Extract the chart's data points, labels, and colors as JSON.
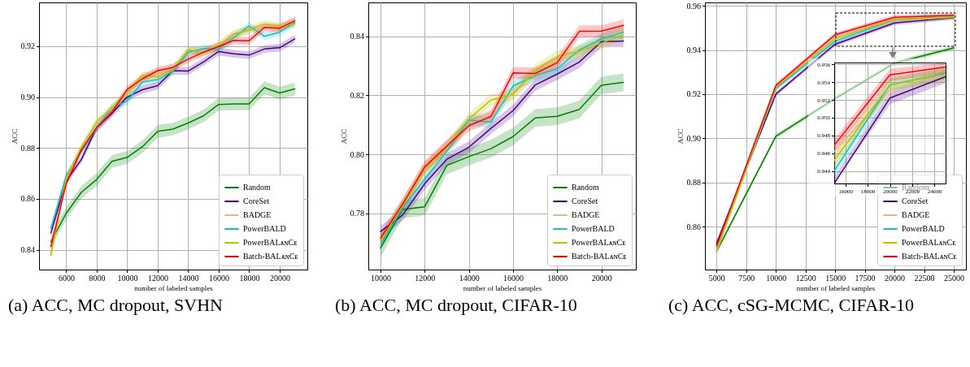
{
  "chart_data": [
    {
      "type": "line",
      "title": "(a) ACC, MC dropout, SVHN",
      "xlabel": "number of labeled samples",
      "ylabel": "ACC",
      "grid": true,
      "legend": "bottom right",
      "x": [
        5000,
        6000,
        7000,
        8000,
        9000,
        10000,
        11000,
        12000,
        13000,
        14000,
        15000,
        16000,
        17000,
        18000,
        19000,
        20000,
        21000
      ],
      "xlim": [
        4220,
        21820
      ],
      "xticks": [
        6000,
        8000,
        10000,
        12000,
        14000,
        16000,
        18000,
        20000
      ],
      "ylim": [
        0.8322,
        0.9372
      ],
      "yticks": [
        0.84,
        0.86,
        0.88,
        {
          "value": 0.9,
          "label": "0.90"
        },
        0.92
      ],
      "series": [
        {
          "name": "Random",
          "color": "#008000",
          "values": [
            0.8432,
            0.8543,
            0.8626,
            0.8676,
            0.8747,
            0.8763,
            0.8805,
            0.8865,
            0.8874,
            0.8898,
            0.8926,
            0.8971,
            0.8973,
            0.8973,
            0.9037,
            0.9016,
            0.9032
          ],
          "lower": [
            0.8407,
            0.8518,
            0.8601,
            0.8651,
            0.8722,
            0.8738,
            0.878,
            0.884,
            0.8849,
            0.8873,
            0.8901,
            0.8946,
            0.8948,
            0.8948,
            0.9012,
            0.8991,
            0.9007
          ],
          "upper": [
            0.8457,
            0.8568,
            0.8651,
            0.8701,
            0.8772,
            0.8788,
            0.883,
            0.889,
            0.8899,
            0.8923,
            0.8951,
            0.8996,
            0.8998,
            0.8998,
            0.9062,
            0.9041,
            0.9057
          ]
        },
        {
          "name": "CoreSet",
          "color": "#4b0082",
          "values": [
            0.8466,
            0.867,
            0.8755,
            0.888,
            0.8936,
            0.9,
            0.9029,
            0.9045,
            0.9104,
            0.9102,
            0.9138,
            0.9179,
            0.917,
            0.9165,
            0.9189,
            0.9194,
            0.9229
          ],
          "lower": [
            0.8451,
            0.8655,
            0.874,
            0.8865,
            0.8921,
            0.8985,
            0.9014,
            0.903,
            0.9089,
            0.9087,
            0.9123,
            0.9164,
            0.9155,
            0.915,
            0.9174,
            0.9179,
            0.9214
          ],
          "upper": [
            0.8481,
            0.8685,
            0.877,
            0.8895,
            0.8951,
            0.9015,
            0.9044,
            0.906,
            0.9119,
            0.9117,
            0.9153,
            0.9194,
            0.9185,
            0.918,
            0.9204,
            0.9209,
            0.9244
          ]
        },
        {
          "name": "BADGE",
          "color": "#deb887",
          "values": [
            0.839,
            0.8675,
            0.88,
            0.889,
            0.8955,
            0.9015,
            0.908,
            0.9095,
            0.9115,
            0.918,
            0.9185,
            0.9205,
            0.925,
            0.926,
            0.928,
            0.9275,
            0.9305
          ],
          "lower": [
            0.8375,
            0.866,
            0.8785,
            0.8875,
            0.894,
            0.9,
            0.9065,
            0.908,
            0.91,
            0.9165,
            0.917,
            0.919,
            0.9235,
            0.9245,
            0.9265,
            0.926,
            0.929
          ],
          "upper": [
            0.8405,
            0.869,
            0.8815,
            0.8905,
            0.897,
            0.903,
            0.9095,
            0.911,
            0.913,
            0.9195,
            0.92,
            0.922,
            0.9265,
            0.9275,
            0.9295,
            0.929,
            0.932
          ]
        },
        {
          "name": "PowerBALD",
          "color": "#17bfbf",
          "values": [
            0.8484,
            0.8691,
            0.8787,
            0.8878,
            0.896,
            0.8984,
            0.9059,
            0.9069,
            0.9101,
            0.9176,
            0.9191,
            0.9188,
            0.9234,
            0.928,
            0.9239,
            0.9255,
            0.9293
          ],
          "lower": [
            0.8469,
            0.8676,
            0.8772,
            0.8863,
            0.8945,
            0.8969,
            0.9044,
            0.9054,
            0.9086,
            0.9161,
            0.9176,
            0.9173,
            0.9219,
            0.9265,
            0.9224,
            0.924,
            0.9278
          ],
          "upper": [
            0.8499,
            0.8706,
            0.8802,
            0.8893,
            0.8975,
            0.8999,
            0.9074,
            0.9084,
            0.9116,
            0.9191,
            0.9206,
            0.9203,
            0.9249,
            0.9295,
            0.9254,
            0.927,
            0.9308
          ]
        },
        {
          "name": "PowerBALᴀɴCᴇ",
          "color": "#bfbf00",
          "values": [
            0.8378,
            0.868,
            0.8803,
            0.8904,
            0.8957,
            0.9016,
            0.9085,
            0.908,
            0.9106,
            0.9186,
            0.9173,
            0.9202,
            0.9247,
            0.9266,
            0.9287,
            0.9277,
            0.9287
          ],
          "lower": [
            0.8363,
            0.8665,
            0.8788,
            0.8889,
            0.8942,
            0.9001,
            0.907,
            0.9065,
            0.9091,
            0.9171,
            0.9158,
            0.9187,
            0.9232,
            0.9251,
            0.9272,
            0.9262,
            0.9272
          ],
          "upper": [
            0.8393,
            0.8695,
            0.8818,
            0.8919,
            0.8972,
            0.9031,
            0.91,
            0.9095,
            0.9121,
            0.9201,
            0.9188,
            0.9217,
            0.9262,
            0.9281,
            0.9302,
            0.9292,
            0.9302
          ]
        },
        {
          "name": "Batch-BALᴀɴCᴇ",
          "color": "#ff0000",
          "values": [
            0.8413,
            0.866,
            0.8793,
            0.888,
            0.8941,
            0.903,
            0.9072,
            0.9104,
            0.9117,
            0.9149,
            0.9176,
            0.9199,
            0.9223,
            0.9221,
            0.9274,
            0.9271,
            0.93
          ],
          "lower": [
            0.8398,
            0.8645,
            0.8778,
            0.8865,
            0.8926,
            0.9015,
            0.9057,
            0.9089,
            0.9102,
            0.9134,
            0.9161,
            0.9184,
            0.9208,
            0.9206,
            0.9259,
            0.9256,
            0.9285
          ],
          "upper": [
            0.8428,
            0.8675,
            0.8808,
            0.8895,
            0.8956,
            0.9045,
            0.9087,
            0.9119,
            0.9132,
            0.9164,
            0.9191,
            0.9214,
            0.9238,
            0.9236,
            0.9289,
            0.9286,
            0.9315
          ]
        }
      ]
    },
    {
      "type": "line",
      "title": "(b) ACC, MC dropout, CIFAR-10",
      "xlabel": "number of labeled samples",
      "ylabel": "ACC",
      "grid": true,
      "legend": "bottom right",
      "x": [
        10000,
        11000,
        12000,
        13000,
        14000,
        15000,
        16000,
        17000,
        18000,
        19000,
        20000,
        21000
      ],
      "xlim": [
        9448,
        21558
      ],
      "xticks": [
        10000,
        12000,
        14000,
        16000,
        18000,
        20000
      ],
      "ylim": [
        0.7609,
        0.8515
      ],
      "yticks": [
        0.78,
        {
          "value": 0.8,
          "label": "0.80"
        },
        0.82,
        0.84
      ],
      "series": [
        {
          "name": "Random",
          "color": "#008000",
          "values": [
            0.7682,
            0.7813,
            0.7822,
            0.7962,
            0.7992,
            0.8019,
            0.806,
            0.8123,
            0.8129,
            0.8152,
            0.8234,
            0.8244
          ],
          "lower": [
            0.7652,
            0.7783,
            0.7792,
            0.7932,
            0.7962,
            0.7989,
            0.803,
            0.8093,
            0.8099,
            0.8122,
            0.8204,
            0.8214
          ],
          "upper": [
            0.7712,
            0.7843,
            0.7852,
            0.7992,
            0.8022,
            0.8049,
            0.809,
            0.8153,
            0.8159,
            0.8182,
            0.8264,
            0.8274
          ]
        },
        {
          "name": "CoreSet",
          "color": "#4b0082",
          "values": [
            0.7738,
            0.7794,
            0.79,
            0.7983,
            0.8024,
            0.8088,
            0.8148,
            0.8235,
            0.8272,
            0.8313,
            0.8382,
            0.8384
          ],
          "lower": [
            0.7718,
            0.7774,
            0.788,
            0.7963,
            0.8004,
            0.8068,
            0.8128,
            0.8215,
            0.8252,
            0.8293,
            0.8362,
            0.8364
          ],
          "upper": [
            0.7758,
            0.7814,
            0.792,
            0.8003,
            0.8044,
            0.8108,
            0.8168,
            0.8255,
            0.8292,
            0.8333,
            0.8402,
            0.8404
          ]
        },
        {
          "name": "BADGE",
          "color": "#deb887",
          "values": [
            0.771,
            0.783,
            0.7955,
            0.803,
            0.811,
            0.813,
            0.821,
            0.8275,
            0.8315,
            0.8345,
            0.839,
            0.8425
          ],
          "lower": [
            0.769,
            0.781,
            0.7935,
            0.801,
            0.809,
            0.811,
            0.819,
            0.8255,
            0.8295,
            0.8325,
            0.837,
            0.8405
          ],
          "upper": [
            0.773,
            0.785,
            0.7975,
            0.805,
            0.813,
            0.815,
            0.823,
            0.8295,
            0.8335,
            0.8365,
            0.841,
            0.8445
          ]
        },
        {
          "name": "PowerBALD",
          "color": "#17bfbf",
          "values": [
            0.7694,
            0.7817,
            0.7917,
            0.801,
            0.8116,
            0.8109,
            0.8232,
            0.8267,
            0.829,
            0.8354,
            0.8391,
            0.8414
          ],
          "lower": [
            0.7674,
            0.7797,
            0.7897,
            0.799,
            0.8096,
            0.8089,
            0.8212,
            0.8247,
            0.827,
            0.8334,
            0.8371,
            0.8394
          ],
          "upper": [
            0.7714,
            0.7837,
            0.7937,
            0.803,
            0.8136,
            0.8129,
            0.8252,
            0.8287,
            0.831,
            0.8374,
            0.8411,
            0.8434
          ]
        },
        {
          "name": "PowerBALᴀɴCᴇ",
          "color": "#bfbf00",
          "values": [
            0.7707,
            0.7827,
            0.795,
            0.8024,
            0.812,
            0.8184,
            0.8203,
            0.8285,
            0.8331,
            0.835,
            0.8377,
            0.8406
          ],
          "lower": [
            0.7687,
            0.7807,
            0.793,
            0.8004,
            0.81,
            0.8164,
            0.8183,
            0.8265,
            0.8311,
            0.833,
            0.8357,
            0.8386
          ],
          "upper": [
            0.7727,
            0.7847,
            0.797,
            0.8044,
            0.814,
            0.8204,
            0.8223,
            0.8305,
            0.8351,
            0.837,
            0.8397,
            0.8426
          ]
        },
        {
          "name": "Batch-BALᴀɴCᴇ",
          "color": "#ff0000",
          "values": [
            0.7715,
            0.7831,
            0.7957,
            0.8028,
            0.8097,
            0.8128,
            0.8276,
            0.8274,
            0.8311,
            0.8417,
            0.8418,
            0.8437
          ],
          "lower": [
            0.7695,
            0.7811,
            0.7937,
            0.8008,
            0.8077,
            0.8108,
            0.8256,
            0.8254,
            0.8291,
            0.8397,
            0.8398,
            0.8417
          ],
          "upper": [
            0.7735,
            0.7851,
            0.7977,
            0.8048,
            0.8117,
            0.8148,
            0.8296,
            0.8294,
            0.8331,
            0.8437,
            0.8438,
            0.8457
          ]
        }
      ]
    },
    {
      "type": "line",
      "title": "(c) ACC, cSG-MCMC, CIFAR-10",
      "xlabel": "number of labeled samples",
      "ylabel": "ACC",
      "grid": true,
      "legend": "bottom right",
      "x": [
        5000,
        10000,
        15000,
        20000,
        25000
      ],
      "xlim": [
        4020,
        26030
      ],
      "xticks": [
        5000,
        7500,
        10000,
        12500,
        15000,
        17500,
        20000,
        22500,
        25000
      ],
      "ylim": [
        0.8406,
        0.9615
      ],
      "yticks": [
        0.86,
        0.88,
        {
          "value": 0.9,
          "label": "0.90"
        },
        0.92,
        0.94,
        0.96
      ],
      "series": [
        {
          "name": "Random",
          "color": "#008000",
          "values": [
            0.8488,
            0.9009,
            0.918,
            0.934,
            0.9409
          ],
          "lower": [
            0.8478,
            0.8999,
            0.917,
            0.933,
            0.9399
          ],
          "upper": [
            0.8498,
            0.9019,
            0.919,
            0.935,
            0.9419
          ]
        },
        {
          "name": "CoreSet",
          "color": "#4b0082",
          "values": [
            0.8525,
            0.92,
            0.9426,
            0.9522,
            0.9546
          ],
          "lower": [
            0.8515,
            0.919,
            0.9416,
            0.9512,
            0.9536
          ],
          "upper": [
            0.8535,
            0.921,
            0.9436,
            0.9532,
            0.9556
          ]
        },
        {
          "name": "BADGE",
          "color": "#deb887",
          "values": [
            0.8485,
            0.9228,
            0.9462,
            0.9531,
            0.9548
          ],
          "lower": [
            0.8475,
            0.9218,
            0.9452,
            0.9521,
            0.9538
          ],
          "upper": [
            0.8495,
            0.9238,
            0.9472,
            0.9541,
            0.9558
          ]
        },
        {
          "name": "PowerBALD",
          "color": "#17bfbf",
          "values": [
            0.8503,
            0.9225,
            0.944,
            0.9537,
            0.955
          ],
          "lower": [
            0.8493,
            0.9215,
            0.943,
            0.9527,
            0.954
          ],
          "upper": [
            0.8513,
            0.9235,
            0.945,
            0.9547,
            0.956
          ]
        },
        {
          "name": "PowerBALᴀɴCᴇ",
          "color": "#bfbf00",
          "values": [
            0.8495,
            0.923,
            0.9452,
            0.9537,
            0.9549
          ],
          "lower": [
            0.8485,
            0.922,
            0.9442,
            0.9527,
            0.9539
          ],
          "upper": [
            0.8505,
            0.924,
            0.9462,
            0.9547,
            0.9559
          ]
        },
        {
          "name": "Batch-BALᴀɴCᴇ",
          "color": "#ff0000",
          "values": [
            0.8513,
            0.9239,
            0.9469,
            0.9548,
            0.9557
          ],
          "lower": [
            0.8503,
            0.9229,
            0.9459,
            0.9538,
            0.9547
          ],
          "upper": [
            0.8523,
            0.9249,
            0.9479,
            0.9558,
            0.9567
          ]
        }
      ]
    },
    {
      "type": "line",
      "grid": true,
      "x": [
        15000,
        20000,
        25000
      ],
      "xlim": [
        15000,
        25000
      ],
      "xticks": [
        16000,
        18000,
        20000,
        22000,
        24000
      ],
      "ylim": [
        0.9426,
        0.9562
      ],
      "yticks": [
        0.944,
        0.946,
        0.948,
        {
          "value": 0.95,
          "label": "0.950"
        },
        0.952,
        0.954,
        0.956
      ],
      "series": [
        {
          "color": "#4b0082",
          "values": [
            0.9426,
            0.9522,
            0.9546
          ],
          "lower": [
            0.9426,
            0.9515,
            0.9539
          ],
          "upper": [
            0.9433,
            0.9529,
            0.9553
          ]
        },
        {
          "color": "#deb887",
          "values": [
            0.9462,
            0.9531,
            0.9548
          ],
          "lower": [
            0.9455,
            0.9524,
            0.9541
          ],
          "upper": [
            0.9469,
            0.9538,
            0.9555
          ]
        },
        {
          "color": "#17bfbf",
          "values": [
            0.944,
            0.9537,
            0.955
          ],
          "lower": [
            0.9433,
            0.953,
            0.9543
          ],
          "upper": [
            0.9447,
            0.9544,
            0.9557
          ]
        },
        {
          "color": "#bfbf00",
          "values": [
            0.9452,
            0.9537,
            0.9549
          ],
          "lower": [
            0.9445,
            0.953,
            0.9542
          ],
          "upper": [
            0.9459,
            0.9544,
            0.9556
          ]
        },
        {
          "color": "#ff0000",
          "values": [
            0.9469,
            0.9548,
            0.9557
          ],
          "lower": [
            0.9462,
            0.9541,
            0.955
          ],
          "upper": [
            0.9476,
            0.9555,
            0.9562
          ]
        }
      ]
    }
  ]
}
